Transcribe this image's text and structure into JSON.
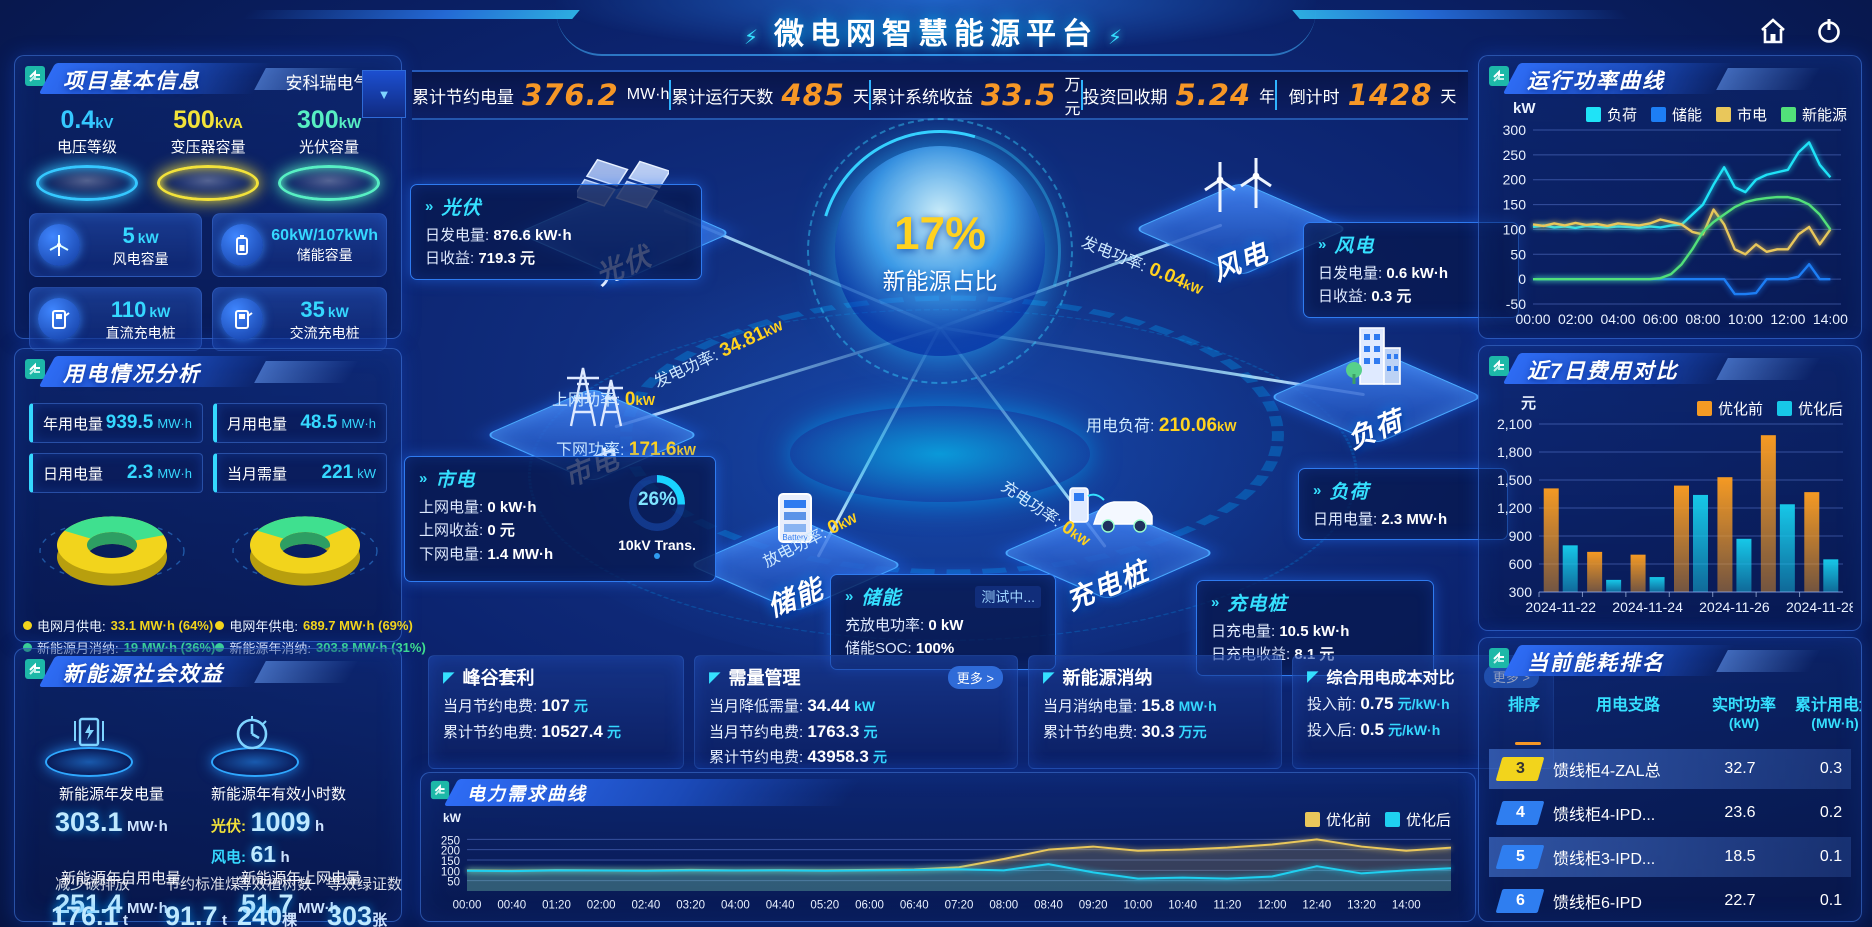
{
  "header": {
    "title": "微电网智慧能源平台"
  },
  "collapse_arrow": "▼",
  "top_stats": [
    {
      "label": "累计节约电量",
      "value": "376.2",
      "unit": "MW·h"
    },
    {
      "label": "累计运行天数",
      "value": "485",
      "unit": "天"
    },
    {
      "label": "累计系统收益",
      "value": "33.5",
      "unit": "万元"
    },
    {
      "label": "投资回收期",
      "value": "5.24",
      "unit": "年"
    },
    {
      "label": "倒计时",
      "value": "1428",
      "unit": "天"
    }
  ],
  "project_info": {
    "title": "项目基本信息",
    "company": "安科瑞电气",
    "pads": [
      {
        "value": "0.4",
        "unit": "kV",
        "label": "电压等级",
        "color": "#35c8ff"
      },
      {
        "value": "500",
        "unit": "kVA",
        "label": "变压器容量",
        "color": "#f2e23a"
      },
      {
        "value": "300",
        "unit": "kW",
        "label": "光伏容量",
        "color": "#57efc3"
      }
    ],
    "cards": [
      {
        "value": "5",
        "unit": "kW",
        "label": "风电容量",
        "icon": "wind-turbine-icon"
      },
      {
        "value": "60kW/107kWh",
        "unit": "",
        "label": "储能容量",
        "icon": "battery-icon"
      },
      {
        "value": "110",
        "unit": "kW",
        "label": "直流充电桩",
        "icon": "dc-charger-icon"
      },
      {
        "value": "35",
        "unit": "kW",
        "label": "交流充电桩",
        "icon": "ac-charger-icon"
      }
    ]
  },
  "usage_analysis": {
    "title": "用电情况分析",
    "stats": [
      {
        "label": "年用电量",
        "value": "939.5",
        "unit": "MW·h"
      },
      {
        "label": "月用电量",
        "value": "48.5",
        "unit": "MW·h"
      },
      {
        "label": "日用电量",
        "value": "2.3",
        "unit": "MW·h"
      },
      {
        "label": "当月需量",
        "value": "221",
        "unit": "kW"
      }
    ],
    "month_legend": [
      {
        "label": "电网月供电:",
        "value": "33.1 MW·h (64%)",
        "color": "#f2d41c"
      },
      {
        "label": "新能源月消纳:",
        "value": "19 MW·h (36%)",
        "color": "#3fe08f"
      }
    ],
    "year_legend": [
      {
        "label": "电网年供电:",
        "value": "689.7 MW·h (69%)",
        "color": "#f2d41c"
      },
      {
        "label": "新能源年消纳:",
        "value": "303.8 MW·h (31%)",
        "color": "#3fe08f"
      }
    ]
  },
  "social_benefit": {
    "title": "新能源社会效益",
    "gen": {
      "label": "新能源年发电量",
      "value": "303.1",
      "unit": "MW·h"
    },
    "hours": {
      "label": "新能源年有效小时数",
      "pv_label": "光伏:",
      "pv_value": "1009",
      "pv_unit": "h",
      "wind_label": "风电:",
      "wind_value": "61",
      "wind_unit": "h"
    },
    "self_use": {
      "label": "新能源年自用电量",
      "value": "251.4",
      "unit": "MW·h"
    },
    "to_grid": {
      "label": "新能源年上网电量",
      "value": "51.7",
      "unit": "MW·h"
    },
    "co2": {
      "label": "减少碳排放",
      "value": "176.1",
      "unit": "t"
    },
    "coal": {
      "label": "节约标准煤",
      "value": "91.7",
      "unit": "t"
    },
    "trees": {
      "label": "等效植树数",
      "value": "240",
      "unit": "棵"
    },
    "certs": {
      "label": "等效绿证数",
      "value": "303",
      "unit": "张"
    }
  },
  "center": {
    "percent": "17%",
    "caption": "新能源占比",
    "nodes": [
      {
        "label": "光伏"
      },
      {
        "label": "风电"
      },
      {
        "label": "市电"
      },
      {
        "label": "负荷"
      },
      {
        "label": "储能"
      },
      {
        "label": "充电桩"
      }
    ],
    "flows": [
      {
        "label": "发电功率:",
        "value": "34.81",
        "unit": "kW"
      },
      {
        "label": "上网功率:",
        "value": "0",
        "unit": "kW"
      },
      {
        "label": "下网功率:",
        "value": "171.6",
        "unit": "kW"
      },
      {
        "label": "发电功率:",
        "value": "0.04",
        "unit": "kW"
      },
      {
        "label": "用电负荷:",
        "value": "210.06",
        "unit": "kW"
      },
      {
        "label": "充电功率:",
        "value": "0",
        "unit": "kW"
      },
      {
        "label": "放电功率:",
        "value": "0",
        "unit": "kW"
      }
    ],
    "transformer": {
      "percent": "26%",
      "label": "10kV Trans."
    },
    "info_boxes": {
      "pv": {
        "title": "光伏",
        "rows": [
          {
            "label": "日发电量:",
            "value": "876.6 kW·h"
          },
          {
            "label": "日收益:",
            "value": "719.3 元"
          }
        ]
      },
      "grid": {
        "title": "市电",
        "rows": [
          {
            "label": "上网电量:",
            "value": "0 kW·h"
          },
          {
            "label": "上网收益:",
            "value": "0 元"
          },
          {
            "label": "下网电量:",
            "value": "1.4 MW·h"
          }
        ]
      },
      "wind": {
        "title": "风电",
        "rows": [
          {
            "label": "日发电量:",
            "value": "0.6 kW·h"
          },
          {
            "label": "日收益:",
            "value": "0.3 元"
          }
        ]
      },
      "load": {
        "title": "负荷",
        "rows": [
          {
            "label": "日用电量:",
            "value": "2.3 MW·h"
          }
        ]
      },
      "storage": {
        "title": "储能",
        "badge": "测试中...",
        "rows": [
          {
            "label": "充放电功率:",
            "value": "0 kW"
          },
          {
            "label": "储能SOC:",
            "value": "100%"
          }
        ]
      },
      "charger": {
        "title": "充电桩",
        "rows": [
          {
            "label": "日充电量:",
            "value": "10.5 kW·h"
          },
          {
            "label": "日充电收益:",
            "value": "8.1 元"
          }
        ]
      }
    }
  },
  "benefit_boxes": [
    {
      "title": "峰谷套利",
      "rows": [
        {
          "label": "当月节约电费:",
          "value": "107",
          "unit": "元"
        },
        {
          "label": "累计节约电费:",
          "value": "10527.4",
          "unit": "元"
        }
      ]
    },
    {
      "title": "需量管理",
      "more": "更多 >",
      "rows": [
        {
          "label": "当月降低需量:",
          "value": "34.44",
          "unit": "kW"
        },
        {
          "label": "当月节约电费:",
          "value": "1763.3",
          "unit": "元"
        },
        {
          "label": "累计节约电费:",
          "value": "43958.3",
          "unit": "元"
        }
      ]
    },
    {
      "title": "新能源消纳",
      "rows": [
        {
          "label": "当月消纳电量:",
          "value": "15.8",
          "unit": "MW·h"
        },
        {
          "label": "累计节约电费:",
          "value": "30.3",
          "unit": "万元"
        }
      ]
    },
    {
      "title": "综合用电成本对比",
      "more": "更多 >",
      "rows": [
        {
          "label": "投入前:",
          "value": "0.75",
          "unit": "元/kW·h"
        },
        {
          "label": "投入后:",
          "value": "0.5",
          "unit": "元/kW·h"
        }
      ]
    }
  ],
  "panels": {
    "run_power": {
      "title": "运行功率曲线"
    },
    "cost7": {
      "title": "近7日费用对比"
    },
    "ranking": {
      "title": "当前能耗排名"
    },
    "demand": {
      "title": "电力需求曲线"
    }
  },
  "ranking_table": {
    "headers": [
      {
        "l1": "排序",
        "l2": ""
      },
      {
        "l1": "用电支路",
        "l2": ""
      },
      {
        "l1": "实时功率",
        "l2": "(kW)"
      },
      {
        "l1": "累计用电量",
        "l2": "(MW·h)"
      }
    ],
    "rows": [
      {
        "rank": "3",
        "branch": "馈线柜4-ZAL总",
        "power": "32.7",
        "energy": "0.3"
      },
      {
        "rank": "4",
        "branch": "馈线柜4-IPD...",
        "power": "23.6",
        "energy": "0.2"
      },
      {
        "rank": "5",
        "branch": "馈线柜3-IPD...",
        "power": "18.5",
        "energy": "0.1"
      },
      {
        "rank": "6",
        "branch": "馈线柜6-IPD",
        "power": "22.7",
        "energy": "0.1"
      }
    ]
  },
  "chart_data": [
    {
      "id": "run_power",
      "type": "line",
      "title": "运行功率曲线",
      "ylabel": "kW",
      "ylim": [
        -50,
        300
      ],
      "yticks": [
        300,
        250,
        200,
        150,
        100,
        50,
        0,
        -50
      ],
      "xticks": [
        "00:00",
        "02:00",
        "04:00",
        "06:00",
        "08:00",
        "10:00",
        "12:00",
        "14:00"
      ],
      "x_step_hours": 0.5,
      "legend_position": "top",
      "grid": true,
      "series": [
        {
          "name": "负荷",
          "color": "#1fe3f7",
          "values": [
            105,
            108,
            104,
            106,
            103,
            107,
            105,
            104,
            106,
            105,
            103,
            106,
            104,
            108,
            110,
            130,
            150,
            190,
            225,
            185,
            175,
            200,
            210,
            215,
            220,
            255,
            275,
            230,
            205
          ]
        },
        {
          "name": "储能",
          "color": "#1d7ef5",
          "values": [
            0,
            0,
            0,
            0,
            0,
            0,
            0,
            0,
            0,
            0,
            0,
            0,
            0,
            0,
            0,
            0,
            0,
            0,
            0,
            -30,
            -30,
            -28,
            0,
            0,
            0,
            5,
            30,
            0,
            0
          ]
        },
        {
          "name": "市电",
          "color": "#e9c75b",
          "values": [
            110,
            107,
            112,
            108,
            113,
            109,
            111,
            107,
            112,
            110,
            108,
            112,
            120,
            115,
            110,
            95,
            90,
            140,
            110,
            60,
            50,
            70,
            55,
            60,
            60,
            90,
            105,
            70,
            100
          ]
        },
        {
          "name": "新能源",
          "color": "#52e07a",
          "values": [
            0,
            0,
            0,
            0,
            0,
            0,
            0,
            0,
            0,
            0,
            0,
            0,
            2,
            10,
            30,
            60,
            95,
            115,
            130,
            145,
            155,
            160,
            163,
            165,
            165,
            160,
            150,
            130,
            100
          ]
        }
      ]
    },
    {
      "id": "cost7",
      "type": "bar",
      "title": "近7日费用对比",
      "ylabel": "元",
      "ylim": [
        300,
        2100
      ],
      "yticks": [
        2100,
        1800,
        1500,
        1200,
        900,
        600,
        300
      ],
      "categories": [
        "2024-11-22",
        "2024-11-23",
        "2024-11-24",
        "2024-11-25",
        "2024-11-26",
        "2024-11-27",
        "2024-11-28"
      ],
      "xtick_shown": [
        "2024-11-22",
        "2024-11-24",
        "2024-11-26",
        "2024-11-28"
      ],
      "legend_position": "top",
      "grid": true,
      "series": [
        {
          "name": "优化前",
          "color": "#f59a23",
          "values": [
            1410,
            730,
            700,
            1440,
            1530,
            1980,
            1370
          ]
        },
        {
          "name": "优化后",
          "color": "#17c8e8",
          "values": [
            800,
            430,
            460,
            1340,
            870,
            1240,
            650
          ]
        }
      ]
    },
    {
      "id": "demand",
      "type": "area",
      "title": "电力需求曲线",
      "ylabel": "kW",
      "ylim": [
        0,
        300
      ],
      "yticks": [
        250,
        200,
        150,
        100,
        50
      ],
      "xticks": [
        "00:00",
        "00:40",
        "01:20",
        "02:00",
        "02:40",
        "03:20",
        "04:00",
        "04:40",
        "05:20",
        "06:00",
        "06:40",
        "07:20",
        "08:00",
        "08:40",
        "09:20",
        "10:00",
        "10:40",
        "11:20",
        "12:00",
        "12:40",
        "13:20",
        "14:00"
      ],
      "legend_position": "top-right",
      "grid": true,
      "series": [
        {
          "name": "优化前",
          "color": "#e9c75b",
          "values": [
            100,
            98,
            101,
            100,
            99,
            102,
            100,
            101,
            100,
            102,
            104,
            115,
            155,
            200,
            215,
            195,
            200,
            210,
            225,
            250,
            215,
            195,
            210
          ]
        },
        {
          "name": "优化后",
          "color": "#1fd0f0",
          "values": [
            98,
            96,
            100,
            99,
            98,
            100,
            99,
            100,
            98,
            100,
            102,
            105,
            100,
            130,
            90,
            60,
            65,
            60,
            70,
            120,
            85,
            100,
            110
          ]
        }
      ]
    },
    {
      "id": "donut_month",
      "type": "pie",
      "labels": [
        "电网月供电",
        "新能源月消纳"
      ],
      "values": [
        64,
        36
      ],
      "colors": [
        "#f2d41c",
        "#3fe08f"
      ]
    },
    {
      "id": "donut_year",
      "type": "pie",
      "labels": [
        "电网年供电",
        "新能源年消纳"
      ],
      "values": [
        69,
        31
      ],
      "colors": [
        "#f2d41c",
        "#3fe08f"
      ]
    }
  ]
}
